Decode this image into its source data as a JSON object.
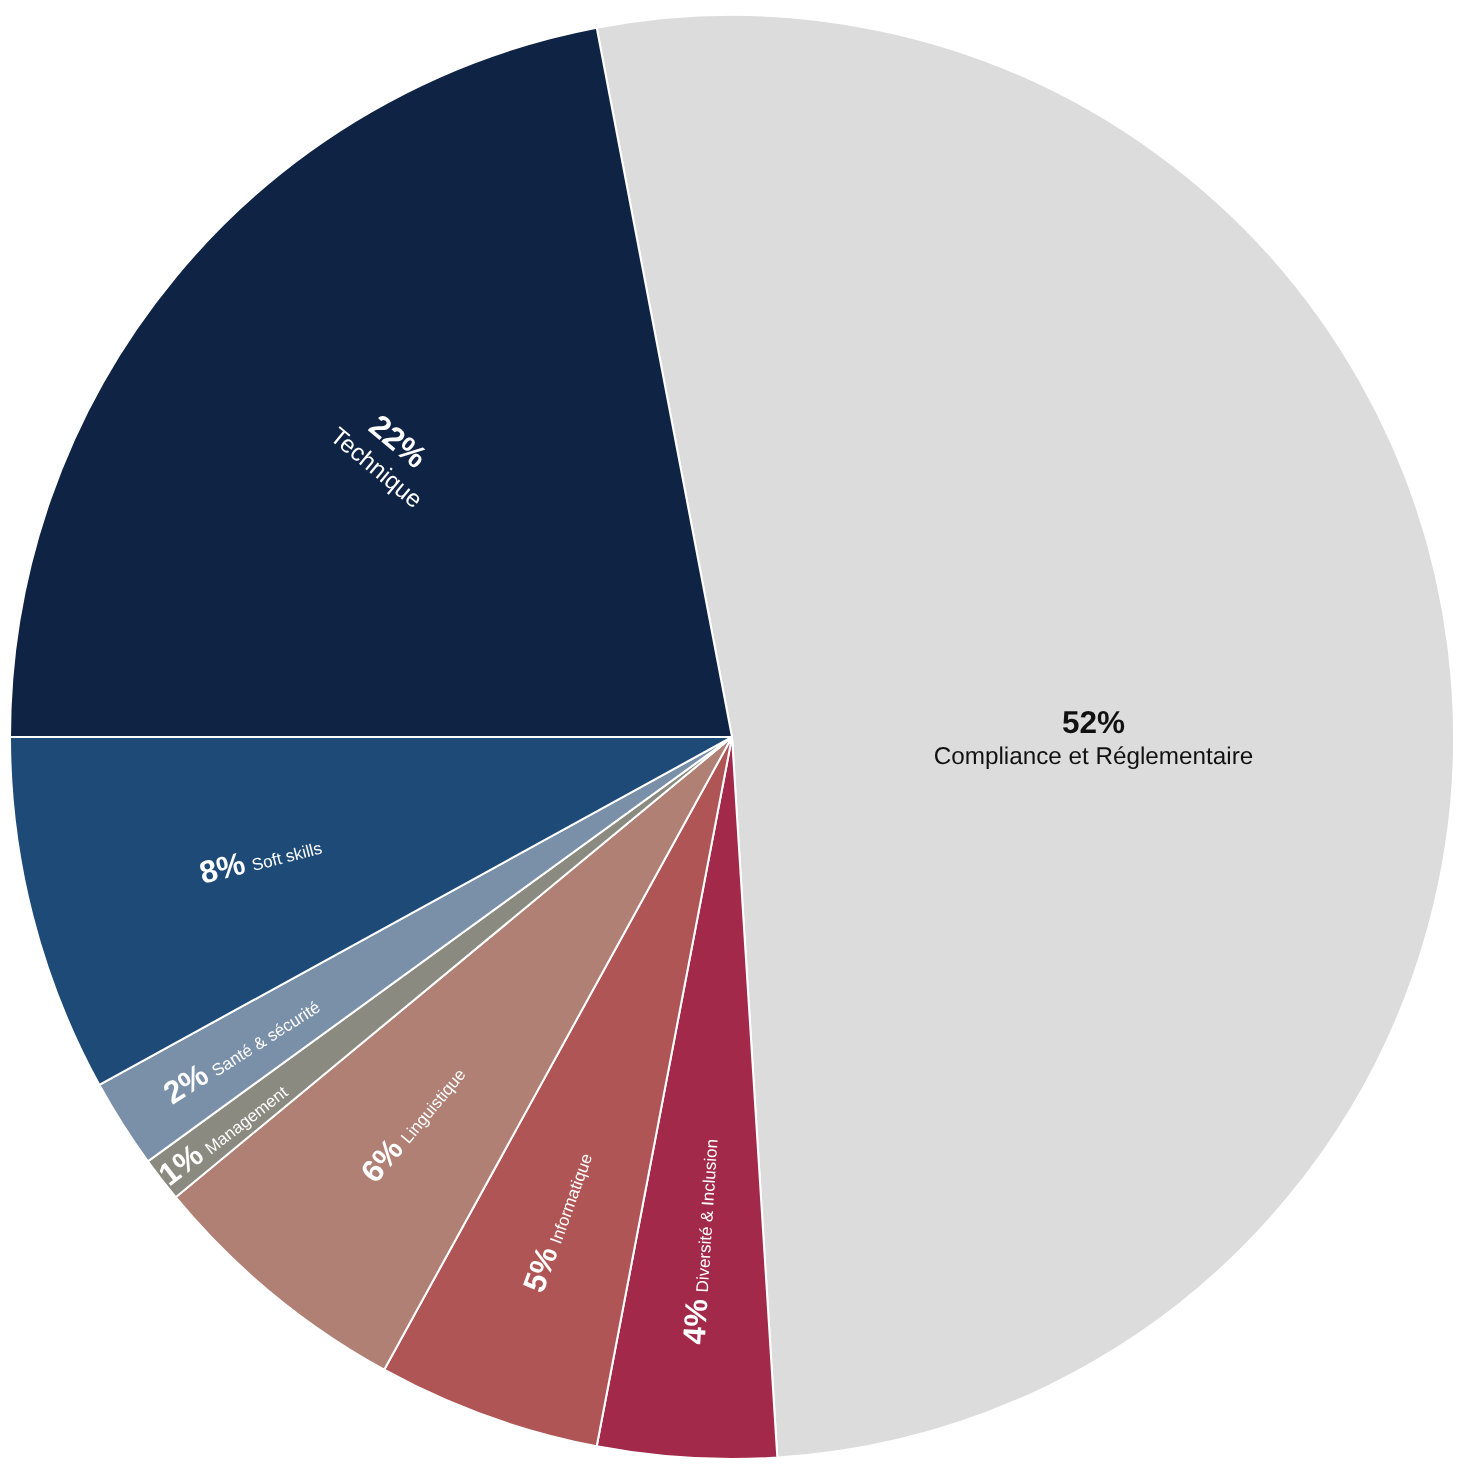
{
  "chart_data": {
    "type": "pie",
    "categories": [
      "Compliance et Réglementaire",
      "Diversité & Inclusion",
      "Informatique",
      "Linguistique",
      "Management",
      "Santé & sécurité",
      "Soft skills",
      "Technique"
    ],
    "values": [
      52,
      4,
      5,
      6,
      1,
      2,
      8,
      22
    ],
    "value_labels": [
      "52%",
      "4%",
      "5%",
      "6%",
      "1%",
      "2%",
      "8%",
      "22%"
    ],
    "colors": [
      "#dcdcdc",
      "#a3294a",
      "#b05555",
      "#b08075",
      "#8a8a80",
      "#7a90a8",
      "#1e4a78",
      "#0f2345"
    ],
    "data_labels": true,
    "legend": false
  }
}
